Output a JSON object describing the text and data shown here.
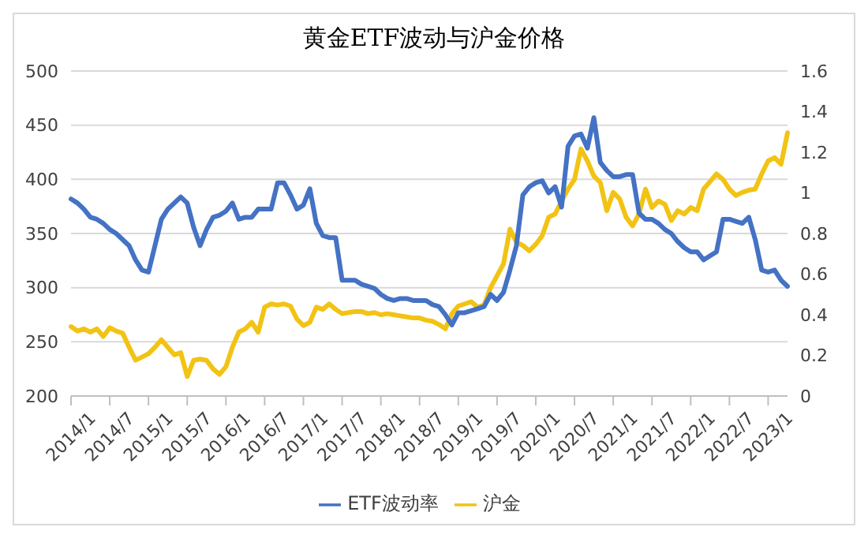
{
  "chart_data": {
    "type": "line",
    "title": "黄金ETF波动与沪金价格",
    "categories": [
      "2014/1",
      null,
      null,
      null,
      null,
      null,
      "2014/7",
      null,
      null,
      null,
      null,
      null,
      "2015/1",
      null,
      null,
      null,
      null,
      null,
      "2015/7",
      null,
      null,
      null,
      null,
      null,
      "2016/1",
      null,
      null,
      null,
      null,
      null,
      "2016/7",
      null,
      null,
      null,
      null,
      null,
      "2017/1",
      null,
      null,
      null,
      null,
      null,
      "2017/7",
      null,
      null,
      null,
      null,
      null,
      "2018/1",
      null,
      null,
      null,
      null,
      null,
      "2018/7",
      null,
      null,
      null,
      null,
      null,
      "2019/1",
      null,
      null,
      null,
      null,
      null,
      "2019/7",
      null,
      null,
      null,
      null,
      null,
      "2020/1",
      null,
      null,
      null,
      null,
      null,
      "2020/7",
      null,
      null,
      null,
      null,
      null,
      "2021/1",
      null,
      null,
      null,
      null,
      null,
      "2021/7",
      null,
      null,
      null,
      null,
      null,
      "2022/1",
      null,
      null,
      null,
      null,
      null,
      "2022/7",
      null,
      null,
      null,
      null,
      null,
      "2023/1",
      null,
      null,
      null
    ],
    "series": [
      {
        "name": "沪金",
        "color": "#f2c314",
        "values": [
          264,
          260,
          262,
          259,
          262,
          255,
          263,
          260,
          258,
          245,
          233,
          236,
          239,
          245,
          252,
          245,
          238,
          240,
          218,
          233,
          234,
          233,
          225,
          220,
          227,
          245,
          259,
          262,
          268,
          259,
          282,
          285,
          284,
          285,
          283,
          271,
          265,
          268,
          282,
          280,
          285,
          280,
          276,
          277,
          278,
          278,
          276,
          277,
          275,
          276,
          275,
          274,
          273,
          272,
          272,
          270,
          269,
          266,
          262,
          276,
          283,
          285,
          287,
          282,
          284,
          300,
          311,
          322,
          354,
          342,
          339,
          334,
          340,
          348,
          365,
          368,
          380,
          391,
          400,
          428,
          417,
          403,
          397,
          371,
          388,
          382,
          365,
          357,
          368,
          391,
          374,
          380,
          377,
          362,
          371,
          368,
          374,
          371,
          391,
          398,
          405,
          400,
          391,
          385,
          388,
          390,
          391,
          405,
          417,
          420,
          414,
          443
        ]
      },
      {
        "name": "ETF波动率",
        "color": "#4472c4",
        "axis": "y2",
        "values": [
          0.97,
          0.95,
          0.92,
          0.88,
          0.87,
          0.85,
          0.82,
          0.8,
          0.77,
          0.74,
          0.67,
          0.62,
          0.61,
          0.74,
          0.87,
          0.92,
          0.95,
          0.98,
          0.95,
          0.83,
          0.74,
          0.82,
          0.88,
          0.89,
          0.91,
          0.95,
          0.87,
          0.88,
          0.88,
          0.92,
          0.92,
          0.92,
          1.05,
          1.05,
          0.99,
          0.92,
          0.94,
          1.02,
          0.85,
          0.79,
          0.78,
          0.78,
          0.57,
          0.57,
          0.57,
          0.55,
          0.54,
          0.53,
          0.5,
          0.48,
          0.47,
          0.48,
          0.48,
          0.47,
          0.47,
          0.47,
          0.45,
          0.44,
          0.4,
          0.35,
          0.41,
          0.41,
          0.42,
          0.43,
          0.44,
          0.5,
          0.47,
          0.51,
          0.62,
          0.74,
          0.99,
          1.03,
          1.05,
          1.06,
          1.0,
          1.03,
          0.93,
          1.23,
          1.28,
          1.29,
          1.22,
          1.37,
          1.15,
          1.11,
          1.08,
          1.08,
          1.09,
          1.09,
          0.9,
          0.87,
          0.87,
          0.85,
          0.82,
          0.8,
          0.76,
          0.73,
          0.71,
          0.71,
          0.67,
          0.69,
          0.71,
          0.87,
          0.87,
          0.86,
          0.85,
          0.88,
          0.77,
          0.62,
          0.61,
          0.62,
          0.57,
          0.54
        ]
      }
    ],
    "ylim": [
      200,
      500
    ],
    "yticks": [
      200,
      250,
      300,
      350,
      400,
      450,
      500
    ],
    "y2lim": [
      0,
      1.6
    ],
    "y2ticks": [
      0,
      0.2,
      0.4,
      0.6,
      0.8,
      1,
      1.2,
      1.4,
      1.6
    ],
    "grid": "y",
    "legend": "bottom",
    "marker": "none",
    "line_style": "solid"
  }
}
